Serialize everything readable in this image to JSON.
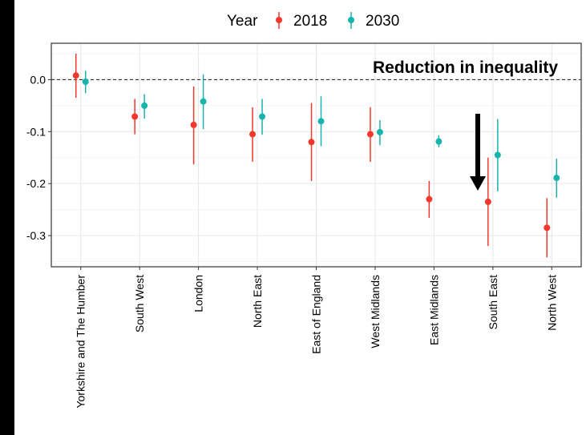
{
  "chart_data": {
    "type": "scatter",
    "subtype": "point-range",
    "categories": [
      "Yorkshire and The Humber",
      "South West",
      "London",
      "North East",
      "East of England",
      "West Midlands",
      "East Midlands",
      "South East",
      "North West"
    ],
    "legend": {
      "title": "Year",
      "position": "top"
    },
    "series": [
      {
        "name": "2018",
        "color": "#F2382D",
        "values": [
          0.008,
          -0.071,
          -0.087,
          -0.105,
          -0.12,
          -0.105,
          -0.23,
          -0.235,
          -0.285
        ],
        "lower": [
          -0.035,
          -0.105,
          -0.163,
          -0.158,
          -0.195,
          -0.158,
          -0.266,
          -0.32,
          -0.342
        ],
        "upper": [
          0.05,
          -0.037,
          -0.013,
          -0.053,
          -0.045,
          -0.053,
          -0.195,
          -0.15,
          -0.228
        ]
      },
      {
        "name": "2030",
        "color": "#17B3AD",
        "values": [
          -0.004,
          -0.05,
          -0.042,
          -0.071,
          -0.08,
          -0.101,
          -0.119,
          -0.145,
          -0.189
        ],
        "lower": [
          -0.026,
          -0.075,
          -0.095,
          -0.106,
          -0.128,
          -0.126,
          -0.13,
          -0.215,
          -0.227
        ],
        "upper": [
          0.017,
          -0.028,
          0.01,
          -0.037,
          -0.032,
          -0.078,
          -0.107,
          -0.076,
          -0.152
        ]
      }
    ],
    "ylim": [
      -0.36,
      0.07
    ],
    "yticks": [
      0.0,
      -0.1,
      -0.2,
      -0.3
    ],
    "ytick_labels": [
      "0.0",
      "-0.1",
      "-0.2",
      "-0.3"
    ],
    "reference_line": {
      "y": 0.0,
      "style": "dashed"
    },
    "annotation": {
      "text": "Reduction in inequality",
      "arrow_category": "South East",
      "arrow_direction": "down"
    },
    "grid": true,
    "xlabel": "",
    "ylabel": ""
  }
}
